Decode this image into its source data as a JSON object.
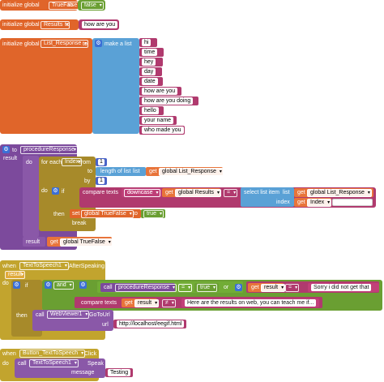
{
  "colors": {
    "variables": "#e0652a",
    "text": "#b03a6e",
    "logic": "#6a9f32",
    "lists": "#5aa1d6",
    "control": "#a78a2a",
    "procedures": "#7c4a9c",
    "events": "#c2a42e"
  },
  "block1": {
    "prefix": "initialize global",
    "name": "TrueFalse",
    "to": "to",
    "value": "false"
  },
  "block2": {
    "prefix": "initialize global",
    "name": "Results",
    "to": "to",
    "value": "how are you"
  },
  "block3": {
    "prefix": "initialize global",
    "name": "List_Response",
    "to": "to",
    "make_list": "make a list",
    "items": [
      "hi",
      "time",
      "hey",
      "day",
      "date",
      "how are you",
      "how are you doing",
      "hello",
      "your name",
      "who made you"
    ]
  },
  "block4": {
    "to": "to",
    "proc_name": "procedureResponse",
    "result": "result",
    "do": "do",
    "for_each": "for each",
    "var": "Index",
    "from": "from",
    "from_val": "1",
    "to_label": "to",
    "length_of_list": "length of list",
    "list_label": "list",
    "get": "get",
    "global_list": "global List_Response",
    "by": "by",
    "by_val": "1",
    "do2": "do",
    "if": "if",
    "compare_texts": "compare texts",
    "downcase": "downcase",
    "global_results": "global Results",
    "eq": "=",
    "select_list_item": "select list item",
    "list2": "list",
    "index": "index",
    "index_var": "Index",
    "then": "then",
    "set": "set",
    "global_truefalse": "global TrueFalse",
    "set_to": "to",
    "true_val": "true",
    "break": "break",
    "result2": "result",
    "get_truefalse": "global TrueFalse"
  },
  "block5": {
    "when": "when",
    "component": "TextToSpeech1",
    "event": "AfterSpeaking",
    "param": "result",
    "do": "do",
    "if": "if",
    "and": "and",
    "call": "call",
    "proc": "procedureResponse",
    "eq": "=",
    "true_val": "true",
    "or": "or",
    "get": "get",
    "result": "result",
    "sorry": "Sorry i did not get that",
    "compare_texts": "compare texts",
    "get_result": "result",
    "neq": "≠",
    "results_web": "Here are the results on web, you can teach me if...",
    "then": "then",
    "call2": "call",
    "webviewer": "WebViewer1",
    "gotourl": "GoToUrl",
    "url": "url",
    "url_val": "http://localhost/eegif.html"
  },
  "block6": {
    "when": "when",
    "component": "Button_TextToSpeech",
    "event": "Click",
    "do": "do",
    "call": "call",
    "tts": "TextToSpeech1",
    "speak": "Speak",
    "message": "message",
    "testing": "Testing"
  }
}
